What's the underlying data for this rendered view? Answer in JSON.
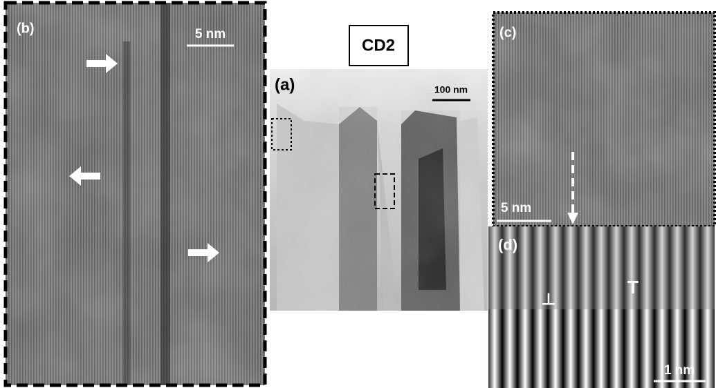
{
  "title": "CD2",
  "panels": [
    {
      "label": "(b)",
      "scale_bar": "5 nm"
    },
    {
      "label": "(a)",
      "scale_bar": "100 nm"
    },
    {
      "label": "(c)",
      "scale_bar": "5 nm"
    },
    {
      "label": "(d)",
      "scale_bar": "1 nm",
      "symbols": [
        "⊥",
        "T"
      ]
    }
  ]
}
